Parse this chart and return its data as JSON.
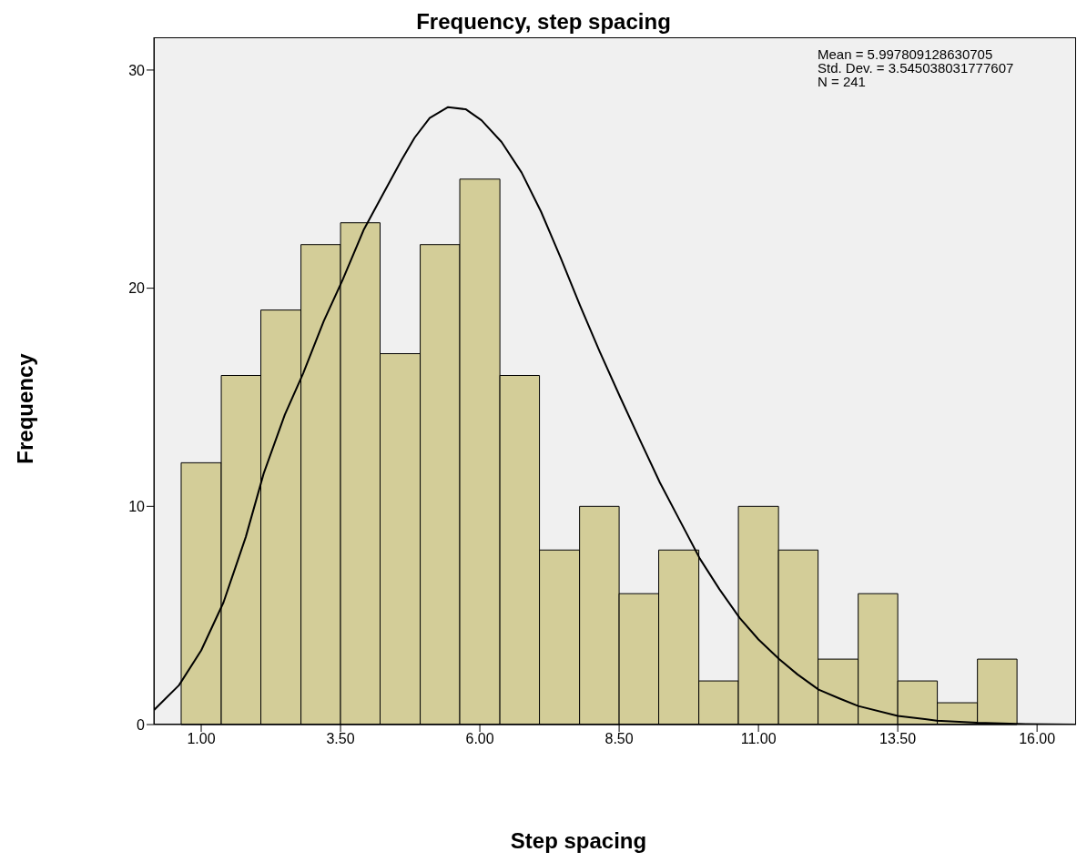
{
  "chart_data": {
    "type": "histogram",
    "title": "Frequency, step spacing",
    "xlabel": "Step spacing",
    "ylabel": "Frequency",
    "bins": [
      0.64,
      1.36,
      2.07,
      2.79,
      3.5,
      4.21,
      4.93,
      5.64,
      6.36,
      7.07,
      7.79,
      8.5,
      9.21,
      9.93,
      10.64,
      11.36,
      12.07,
      12.79,
      13.5,
      14.21,
      14.93,
      15.64
    ],
    "values": [
      12,
      16,
      19,
      22,
      23,
      17,
      22,
      25,
      16,
      8,
      10,
      6,
      8,
      2,
      10,
      8,
      3,
      6,
      2,
      1,
      3
    ],
    "color": "#d3cd98",
    "series": [
      {
        "type": "line",
        "color": "#000000",
        "x": [
          0.15,
          0.6,
          1.0,
          1.4,
          1.8,
          2.12,
          2.5,
          2.83,
          3.2,
          3.54,
          3.92,
          4.26,
          4.6,
          4.83,
          5.1,
          5.43,
          5.75,
          6.03,
          6.39,
          6.75,
          7.1,
          7.45,
          7.8,
          8.15,
          8.52,
          8.9,
          9.23,
          9.6,
          9.95,
          10.3,
          10.66,
          11.0,
          11.37,
          11.7,
          12.08,
          12.45,
          12.79,
          13.5,
          14.2,
          14.93,
          15.8,
          16.7
        ],
        "values": [
          0.66,
          1.8,
          3.4,
          5.6,
          8.6,
          11.5,
          14.2,
          16.1,
          18.5,
          20.4,
          22.7,
          24.3,
          25.9,
          26.9,
          27.8,
          28.3,
          28.2,
          27.7,
          26.7,
          25.3,
          23.5,
          21.4,
          19.2,
          17.1,
          15.0,
          12.9,
          11.1,
          9.3,
          7.6,
          6.2,
          4.9,
          3.9,
          3.0,
          2.3,
          1.6,
          1.2,
          0.85,
          0.4,
          0.18,
          0.08,
          0.02,
          0
        ]
      }
    ],
    "xlim": [
      0.15,
      16.7
    ],
    "xticks": [
      {
        "value": 1,
        "label": "1.00"
      },
      {
        "value": 3.5,
        "label": "3.50"
      },
      {
        "value": 6,
        "label": "6.00"
      },
      {
        "value": 8.5,
        "label": "8.50"
      },
      {
        "value": 11,
        "label": "11.00"
      },
      {
        "value": 13.5,
        "label": "13.50"
      },
      {
        "value": 16,
        "label": "16.00"
      }
    ],
    "ylim": [
      0,
      31.5
    ],
    "yticks": [
      0,
      10,
      20,
      30
    ],
    "grid": false,
    "annotations": [
      "Mean = 5.997809128630705",
      "Std. Dev. = 3.545038031777607",
      "N = 241"
    ]
  }
}
